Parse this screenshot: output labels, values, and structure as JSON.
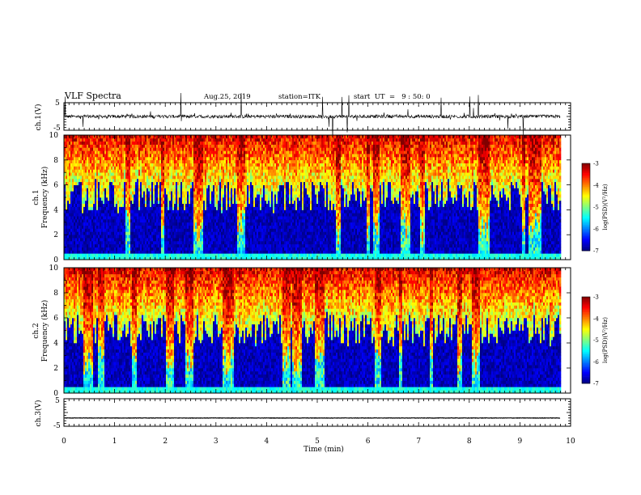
{
  "chart_data": {
    "type": "heatmap",
    "header": {
      "title": "VLF Spectra",
      "date": "Aug.25, 2019",
      "station": "station=ITK",
      "start": "start  UT  =   9 : 50: 0"
    },
    "xaxis": {
      "label": "Time (min)",
      "range": [
        0,
        10
      ],
      "ticks": [
        "0",
        "1",
        "2",
        "3",
        "4",
        "5",
        "6",
        "7",
        "8",
        "9",
        "10"
      ]
    },
    "panels": [
      {
        "kind": "waveform",
        "ylabel": "ch.1(V)",
        "yrange": [
          -5,
          5
        ],
        "ticks": [
          "5",
          "-5"
        ],
        "baseline": 0,
        "data_extent_min": 9.8
      },
      {
        "kind": "spectrogram",
        "ylabel_top": "ch.1",
        "ylabel": "Frequency (kHz)",
        "yrange": [
          0,
          10
        ],
        "ticks": [
          "0",
          "2",
          "4",
          "6",
          "8",
          "10"
        ],
        "data_extent_min": 9.8,
        "colorbar": {
          "label": "log(PSD)(V²/Hz)",
          "range": [
            -7,
            -3
          ],
          "ticks": [
            "-3",
            "-4",
            "-5",
            "-6",
            "-7"
          ]
        }
      },
      {
        "kind": "spectrogram",
        "ylabel_top": "ch.2",
        "ylabel": "Frequency (kHz)",
        "yrange": [
          0,
          10
        ],
        "ticks": [
          "0",
          "2",
          "4",
          "6",
          "8",
          "10"
        ],
        "data_extent_min": 9.8,
        "colorbar": {
          "label": "log(PSD)(V²/Hz)",
          "range": [
            -7,
            -3
          ],
          "ticks": [
            "-3",
            "-4",
            "-5",
            "-6",
            "-7"
          ]
        }
      },
      {
        "kind": "waveform",
        "ylabel": "ch.3(V)",
        "yrange": [
          -5,
          5
        ],
        "ticks": [
          "5",
          "-5"
        ],
        "baseline": -2,
        "data_extent_min": 9.8
      }
    ]
  }
}
